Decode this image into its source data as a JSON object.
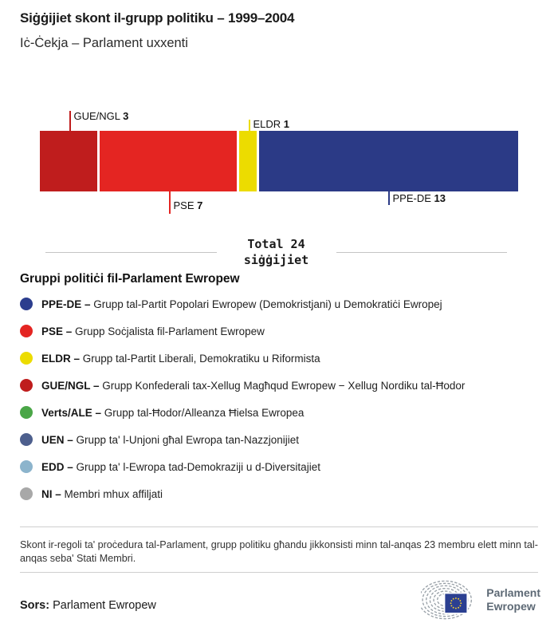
{
  "title": "Siġġijiet skont il-grupp politiku – 1999–2004",
  "subtitle": "Iċ-Ċekja – Parlament uxxenti",
  "chart_data": {
    "type": "bar",
    "variant": "horizontal-stacked",
    "title": "Siġġijiet skont il-grupp politiku – 1999–2004",
    "total_seats": 24,
    "total_label_line1": "Total 24",
    "total_label_line2": "siġġijiet",
    "categories": [
      "GUE/NGL",
      "PSE",
      "ELDR",
      "PPE-DE"
    ],
    "values": [
      3,
      7,
      1,
      13
    ],
    "segments": [
      {
        "group": "GUE/NGL",
        "seats": 3,
        "color": "#bf1d1d",
        "label_position": "above",
        "label_row": 2
      },
      {
        "group": "PSE",
        "seats": 7,
        "color": "#e42522",
        "label_position": "below",
        "label_row": 2
      },
      {
        "group": "ELDR",
        "seats": 1,
        "color": "#ecdc00",
        "label_position": "above",
        "label_row": 1
      },
      {
        "group": "PPE-DE",
        "seats": 13,
        "color": "#2b3a86",
        "label_position": "below",
        "label_row": 1
      }
    ]
  },
  "legend": {
    "heading": "Gruppi politiċi fil-Parlament Ewropew",
    "items": [
      {
        "abbr": "PPE-DE –",
        "description": "Grupp tal-Partit Popolari Ewropew (Demokristjani) u Demokratiċi Ewropej",
        "color": "#2c3e8e"
      },
      {
        "abbr": "PSE –",
        "description": "Grupp Soċjalista fil-Parlament Ewropew",
        "color": "#e42522"
      },
      {
        "abbr": "ELDR –",
        "description": "Grupp tal-Partit Liberali, Demokratiku u Riformista",
        "color": "#ecdc00"
      },
      {
        "abbr": "GUE/NGL –",
        "description": "Grupp Konfederali tax-Xellug Magħqud Ewropew − Xellug Nordiku tal-Ħodor",
        "color": "#bf1d1d"
      },
      {
        "abbr": "Verts/ALE –",
        "description": "Grupp tal-Ħodor/Alleanza Ħielsa Ewropea",
        "color": "#4aa647"
      },
      {
        "abbr": "UEN –",
        "description": "Grupp ta' l-Unjoni għal Ewropa tan-Nazzjonijiet",
        "color": "#4d5f8d"
      },
      {
        "abbr": "EDD –",
        "description": "Grupp ta' l-Ewropa tad-Demokraziji u d-Diversitajiet",
        "color": "#8cb4cc"
      },
      {
        "abbr": "NI –",
        "description": "Membri mhux affiljati",
        "color": "#a8a8a8"
      }
    ]
  },
  "footnote": "Skont ir-regoli ta' proċedura tal-Parlament, grupp politiku għandu jikkonsisti minn tal-anqas 23 membru elett minn tal-anqas seba' Stati Membri.",
  "source": {
    "label": "Sors:",
    "value": "Parlament Ewropew"
  },
  "logo": {
    "line1": "Parlament",
    "line2": "Ewropew",
    "flag_color": "#2b3f91",
    "star_color": "#f8d12e",
    "arc_color": "#99a1a8"
  }
}
